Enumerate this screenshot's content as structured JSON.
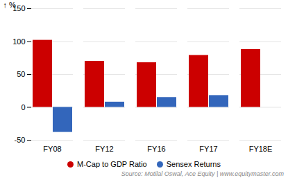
{
  "chart_data": {
    "type": "bar",
    "categories": [
      "FY08",
      "FY12",
      "FY16",
      "FY17",
      "FY18E"
    ],
    "series": [
      {
        "name": "M-Cap to GDP Ratio",
        "color": "#cc0000",
        "values": [
          102,
          70,
          68,
          79,
          88
        ]
      },
      {
        "name": "Sensex Returns",
        "color": "#3366bb",
        "values": [
          -38,
          8,
          15,
          18,
          0
        ]
      }
    ],
    "ylabel": "%",
    "ylim": [
      -50,
      150
    ],
    "yticks": [
      -50,
      0,
      50,
      100,
      150
    ],
    "grid": true,
    "legend": "bottom",
    "annotation": "Source: Motilal Oswal, Ace Equity | www.equitymaster.com"
  }
}
